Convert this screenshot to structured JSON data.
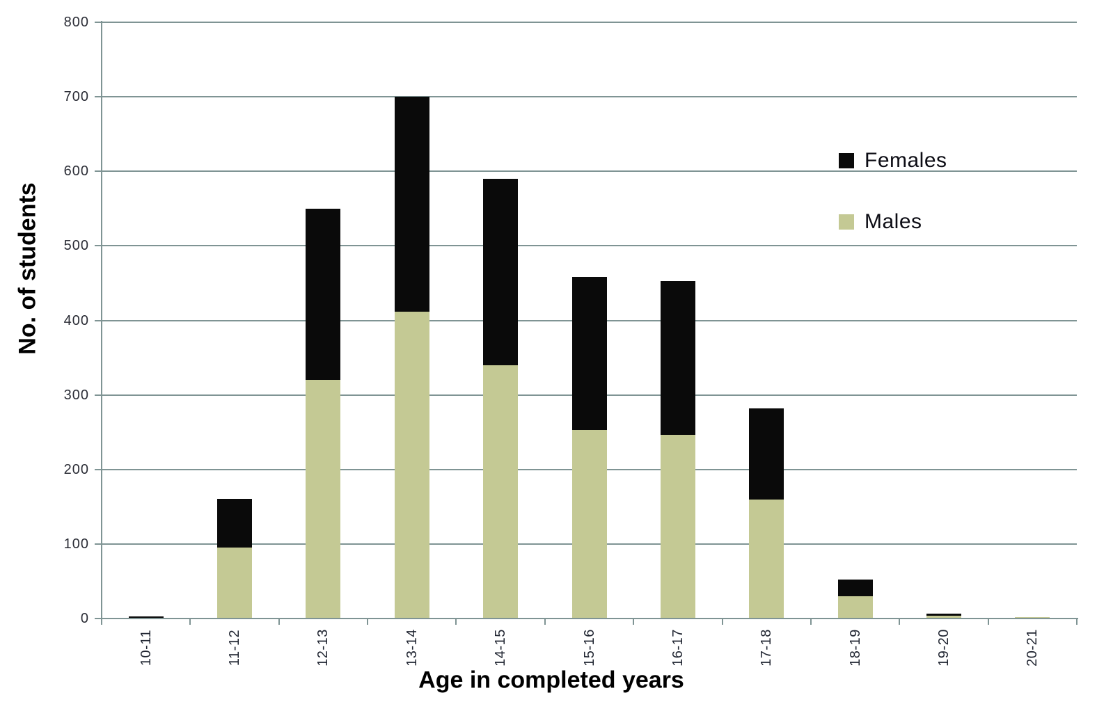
{
  "chart_data": {
    "type": "bar",
    "stacked": true,
    "title": "",
    "xlabel": "Age in completed years",
    "ylabel": "No. of students",
    "categories": [
      "10-11",
      "11-12",
      "12-13",
      "13-14",
      "14-15",
      "15-16",
      "16-17",
      "17-18",
      "18-19",
      "19-20",
      "20-21"
    ],
    "series": [
      {
        "name": "Females",
        "color": "#0a0a0a",
        "values": [
          2,
          65,
          230,
          288,
          250,
          205,
          206,
          122,
          22,
          3,
          0
        ]
      },
      {
        "name": "Males",
        "color": "#c4c994",
        "values": [
          1,
          96,
          320,
          412,
          340,
          253,
          247,
          160,
          30,
          4,
          2
        ]
      }
    ],
    "stack_order_bottom_to_top": [
      "Males",
      "Females"
    ],
    "totals": [
      3,
      161,
      550,
      700,
      590,
      458,
      453,
      282,
      52,
      7,
      2
    ],
    "y_axis": {
      "min": 0,
      "max": 800,
      "step": 100,
      "tick_labels": [
        "0",
        "100",
        "200",
        "300",
        "400",
        "500",
        "600",
        "700",
        "800"
      ]
    },
    "x_axis": {
      "tick_marks_between_categories": true
    },
    "grid": true,
    "legend": {
      "position": "upper-right-inside",
      "entries": [
        "Females",
        "Males"
      ]
    }
  },
  "colors": {
    "background": "#ffffff",
    "gridline": "#7f9494",
    "axis": "#7f9494",
    "y_tick_label": "#2b2d36",
    "x_tick_label": "#1f2430",
    "title": "#000000",
    "females_fill": "#0a0a0a",
    "males_fill": "#c4c994"
  }
}
